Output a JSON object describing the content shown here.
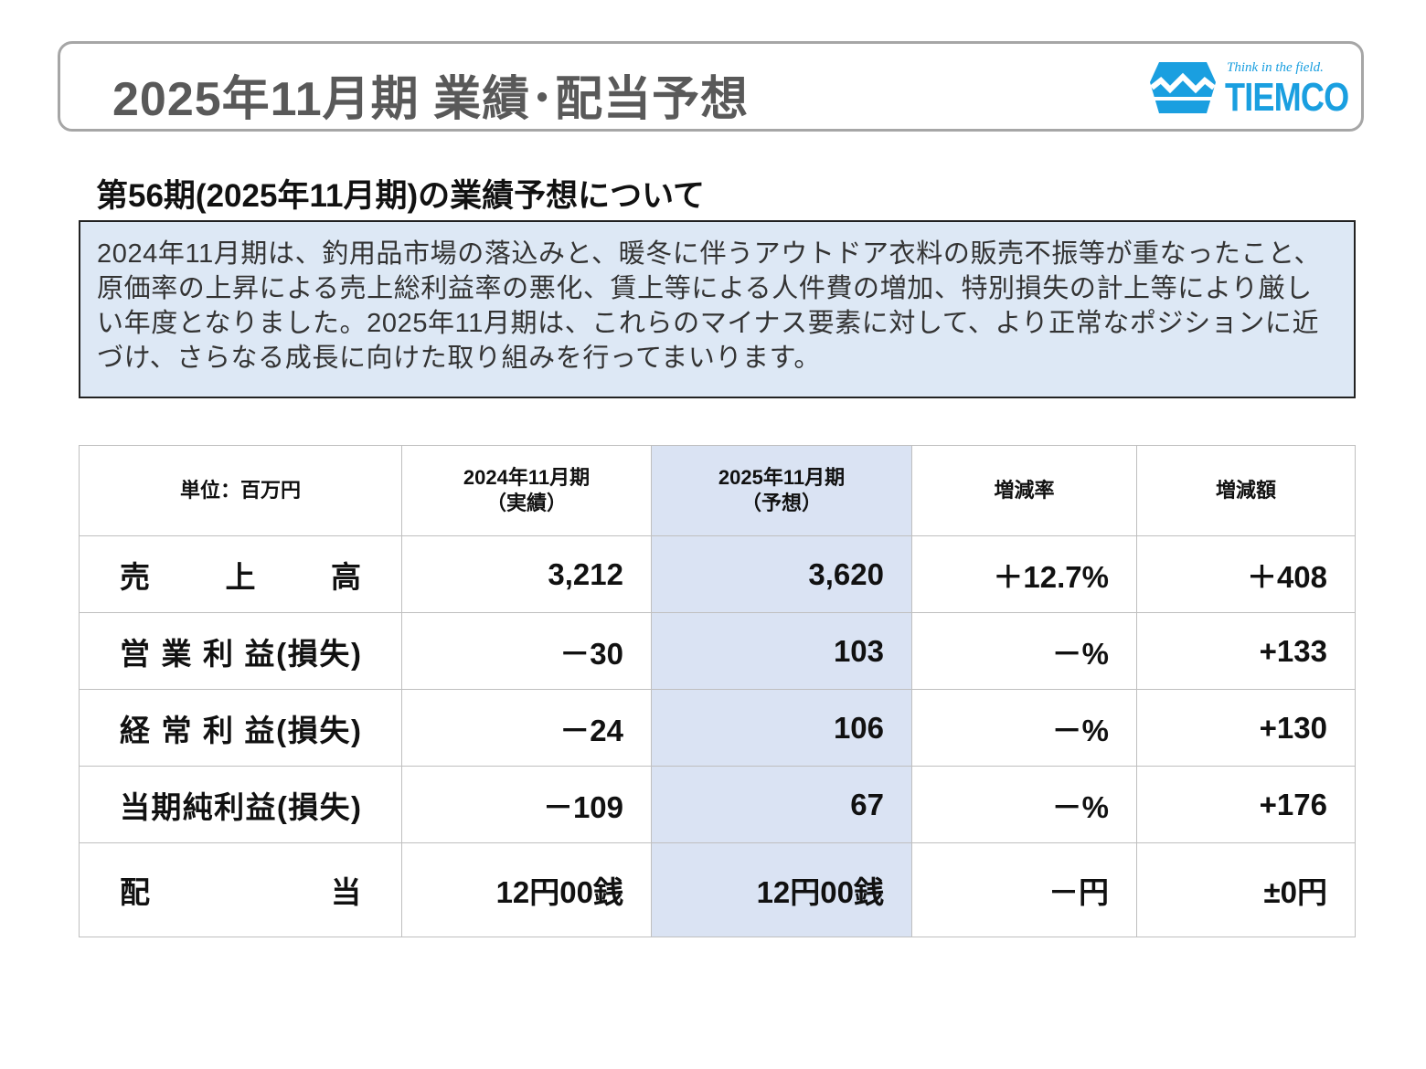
{
  "header": {
    "title": "2025年11月期 業績･配当予想",
    "logo_slogan": "Think in the field.",
    "logo_name": "TIEMCO",
    "accent_color": "#1a9fe0",
    "border_color": "#a6a6a6"
  },
  "section": {
    "heading": "第56期(2025年11月期)の業績予想について",
    "summary": "2024年11月期は、釣用品市場の落込みと、暖冬に伴うアウトドア衣料の販売不振等が重なったこと、原価率の上昇による売上総利益率の悪化、賃上等による人件費の増加、特別損失の計上等により厳しい年度となりました。2025年11月期は、これらのマイナス要素に対して、より正常なポジションに近づけ、さらなる成長に向けた取り組みを行ってまいります。",
    "summary_bg_color": "#dde8f5"
  },
  "table": {
    "headers": {
      "unit": "単位：百万円",
      "prev_line1": "2024年11月期",
      "prev_line2": "（実績）",
      "forecast_line1": "2025年11月期",
      "forecast_line2": "（予想）",
      "rate": "増減率",
      "amount": "増減額"
    },
    "forecast_col_color": "#dae3f3",
    "rows": [
      {
        "label": "売　上　高",
        "prev": "3,212",
        "forecast": "3,620",
        "rate": "＋12.7%",
        "amount": "＋408"
      },
      {
        "label": "営 業 利 益(損失)",
        "prev": "－30",
        "forecast": "103",
        "rate": "－%",
        "amount": "+133"
      },
      {
        "label": "経 常 利 益(損失)",
        "prev": "－24",
        "forecast": "106",
        "rate": "－%",
        "amount": "+130"
      },
      {
        "label": "当期純利益(損失)",
        "prev": "－109",
        "forecast": "67",
        "rate": "－%",
        "amount": "+176"
      },
      {
        "label": "配　当",
        "prev": "12円00銭",
        "forecast": "12円00銭",
        "rate": "－円",
        "amount": "±0円"
      }
    ]
  }
}
